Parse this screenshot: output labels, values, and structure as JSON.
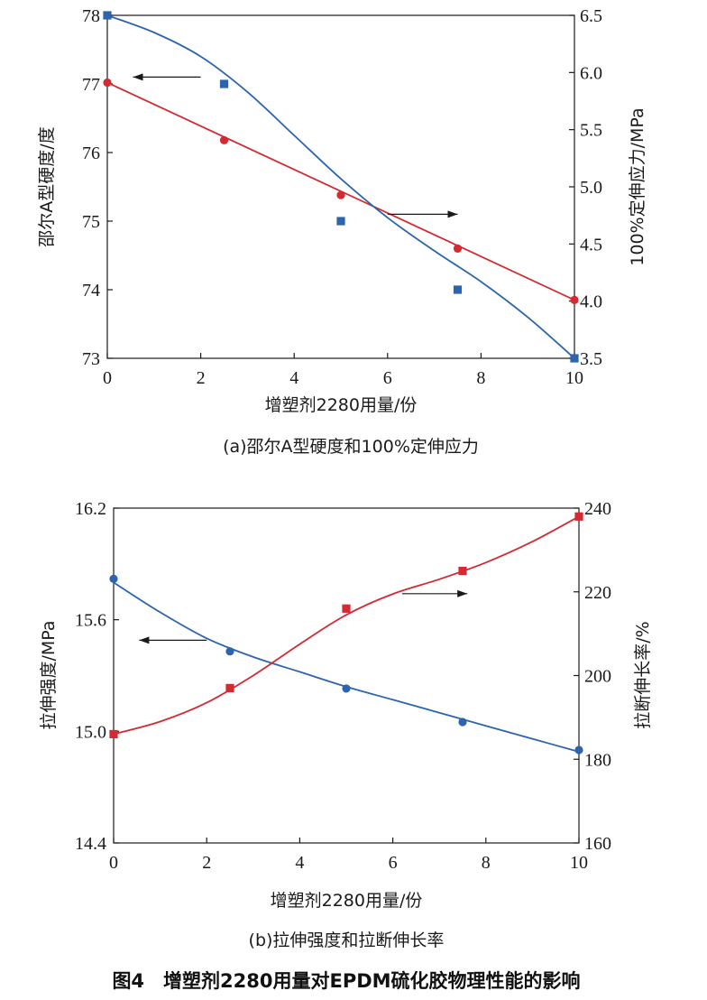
{
  "figure_caption": "图4　增塑剂2280用量对EPDM硫化胶物理性能的影响",
  "chart_data": [
    {
      "type": "line",
      "caption": "(a)邵尔A型硬度和100%定伸应力",
      "xlabel": "增塑剂2280用量/份",
      "ylabel_left": "邵尔A型硬度/度",
      "ylabel_right": "100%定伸应力/MPa",
      "xlim": [
        0,
        10
      ],
      "xticks": [
        "0",
        "2",
        "4",
        "6",
        "8",
        "10"
      ],
      "ylim_left": [
        73,
        78
      ],
      "yticks_left": [
        "73",
        "74",
        "75",
        "76",
        "77",
        "78"
      ],
      "ylim_right": [
        3.5,
        6.5
      ],
      "yticks_right": [
        "3.5",
        "4.0",
        "4.5",
        "5.0",
        "5.5",
        "6.0",
        "6.5"
      ],
      "series": [
        {
          "name": "邵尔A型硬度",
          "axis": "left",
          "color": "#d42a32",
          "marker": "circle",
          "x": [
            0,
            2.5,
            5,
            7.5,
            10
          ],
          "values": [
            77.02,
            76.18,
            75.38,
            74.6,
            73.85
          ],
          "fit": [
            [
              0,
              77.02
            ],
            [
              10,
              73.85
            ]
          ]
        },
        {
          "name": "100%定伸应力",
          "axis": "right",
          "color": "#2c65ad",
          "marker": "square",
          "x": [
            0,
            2.5,
            5,
            7.5,
            10
          ],
          "values": [
            6.5,
            5.9,
            4.7,
            4.1,
            3.5
          ],
          "fit": [
            [
              0,
              6.5
            ],
            [
              1,
              6.35
            ],
            [
              2,
              6.14
            ],
            [
              3,
              5.83
            ],
            [
              4,
              5.45
            ],
            [
              5,
              5.07
            ],
            [
              6,
              4.73
            ],
            [
              7,
              4.44
            ],
            [
              8,
              4.17
            ],
            [
              9,
              3.86
            ],
            [
              10,
              3.5
            ]
          ]
        }
      ],
      "annotations": [
        {
          "type": "arrow",
          "direction": "left",
          "x_from": 2.0,
          "x_to": 0.55,
          "y_axis": "left",
          "y": 77.1
        },
        {
          "type": "arrow",
          "direction": "right",
          "x_from": 6.0,
          "x_to": 7.5,
          "y_axis": "left",
          "y": 75.1
        }
      ]
    },
    {
      "type": "line",
      "caption": "(b)拉伸强度和拉断伸长率",
      "xlabel": "增塑剂2280用量/份",
      "ylabel_left": "拉伸强度/MPa",
      "ylabel_right": "拉断伸长率/%",
      "xlim": [
        0,
        10
      ],
      "xticks": [
        "0",
        "2",
        "4",
        "6",
        "8",
        "10"
      ],
      "ylim_left": [
        14.4,
        16.2
      ],
      "yticks_left": [
        "14.4",
        "15.0",
        "15.6",
        "16.2"
      ],
      "ylim_right": [
        160,
        240
      ],
      "yticks_right": [
        "160",
        "180",
        "200",
        "220",
        "240"
      ],
      "series": [
        {
          "name": "拉伸强度",
          "axis": "left",
          "color": "#2c65ad",
          "marker": "circle",
          "x": [
            0,
            2.5,
            5,
            7.5,
            10
          ],
          "values": [
            15.82,
            15.43,
            15.23,
            15.05,
            14.9
          ],
          "fit": [
            [
              0,
              15.8
            ],
            [
              1,
              15.64
            ],
            [
              2,
              15.5
            ],
            [
              3,
              15.4
            ],
            [
              4,
              15.32
            ],
            [
              5,
              15.24
            ],
            [
              6,
              15.17
            ],
            [
              7,
              15.1
            ],
            [
              8,
              15.03
            ],
            [
              9,
              14.96
            ],
            [
              10,
              14.89
            ]
          ]
        },
        {
          "name": "拉断伸长率",
          "axis": "right",
          "color": "#d42a32",
          "marker": "square",
          "x": [
            0,
            2.5,
            5,
            7.5,
            10
          ],
          "values": [
            186,
            197,
            216,
            225,
            238
          ],
          "fit": [
            [
              0,
              186
            ],
            [
              1,
              189
            ],
            [
              2,
              193.5
            ],
            [
              3,
              200
            ],
            [
              4,
              207.5
            ],
            [
              5,
              214.5
            ],
            [
              6,
              219.5
            ],
            [
              7,
              223
            ],
            [
              8,
              227
            ],
            [
              9,
              232
            ],
            [
              10,
              238
            ]
          ]
        }
      ],
      "annotations": [
        {
          "type": "arrow",
          "direction": "left",
          "x_from": 2.0,
          "x_to": 0.55,
          "y_axis": "left",
          "y": 15.49
        },
        {
          "type": "arrow",
          "direction": "right",
          "x_from": 6.2,
          "x_to": 7.6,
          "y_axis": "left",
          "y": 15.74
        }
      ]
    }
  ]
}
